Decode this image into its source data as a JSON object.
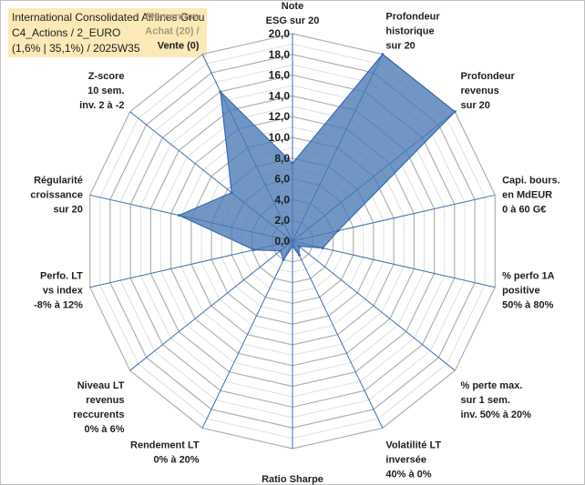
{
  "title_lines": [
    "International Consolidated Airlines Grou",
    "C4_Actions / 2_EURO",
    "(1,6% | 35,1%) / 2025W35"
  ],
  "chart_data": {
    "type": "radar",
    "range": [
      0,
      20
    ],
    "tick_labels": [
      "0,0",
      "2,0",
      "4,0",
      "6,0",
      "8,0",
      "10,0",
      "12,0",
      "14,0",
      "16,0",
      "18,0",
      "20,0"
    ],
    "axes": [
      {
        "lines": [
          "Note",
          "ESG sur 20"
        ]
      },
      {
        "lines": [
          "Profondeur",
          "historique",
          "sur 20"
        ]
      },
      {
        "lines": [
          "Profondeur",
          "revenus",
          "sur 20"
        ]
      },
      {
        "lines": [
          "Capi. bours.",
          "en MdEUR",
          "0 à 60 G€"
        ]
      },
      {
        "lines": [
          "% perfo 1A",
          "positive",
          "50% à 80%"
        ]
      },
      {
        "lines": [
          "% perte max.",
          "sur 1 sem.",
          "inv. 50% à 20%"
        ]
      },
      {
        "lines": [
          "Volatilité LT",
          "inversée",
          "40% à 0%"
        ]
      },
      {
        "lines": [
          "Ratio Sharpe",
          "0 à 1"
        ]
      },
      {
        "lines": [
          "Rendement LT",
          "0% à 20%"
        ]
      },
      {
        "lines": [
          "Niveau LT",
          "revenus",
          "reccurents",
          "0% à 6%"
        ]
      },
      {
        "lines": [
          "Perfo. LT",
          "vs index",
          "-8% à 12%"
        ]
      },
      {
        "lines": [
          "Régularité",
          "croissance",
          "sur 20"
        ]
      },
      {
        "lines": [
          "Z-score",
          "10 sem.",
          "inv. 2 à -2"
        ]
      },
      {
        "lines": [
          "Momentum",
          "Achat (20) /",
          "Vente (0)"
        ]
      }
    ],
    "series": [
      {
        "values": [
          7.5,
          20.0,
          20.0,
          4.5,
          3.0,
          0.8,
          1.5,
          0.5,
          2.0,
          1.5,
          3.8,
          11.2,
          7.5,
          16.0
        ]
      }
    ],
    "colors": {
      "fill": "#4a78b3",
      "stroke": "#3b6bb0",
      "grid": "#c8c8c8",
      "axis": "#3d6fb5",
      "title_bg": "#fbe9b7"
    }
  }
}
